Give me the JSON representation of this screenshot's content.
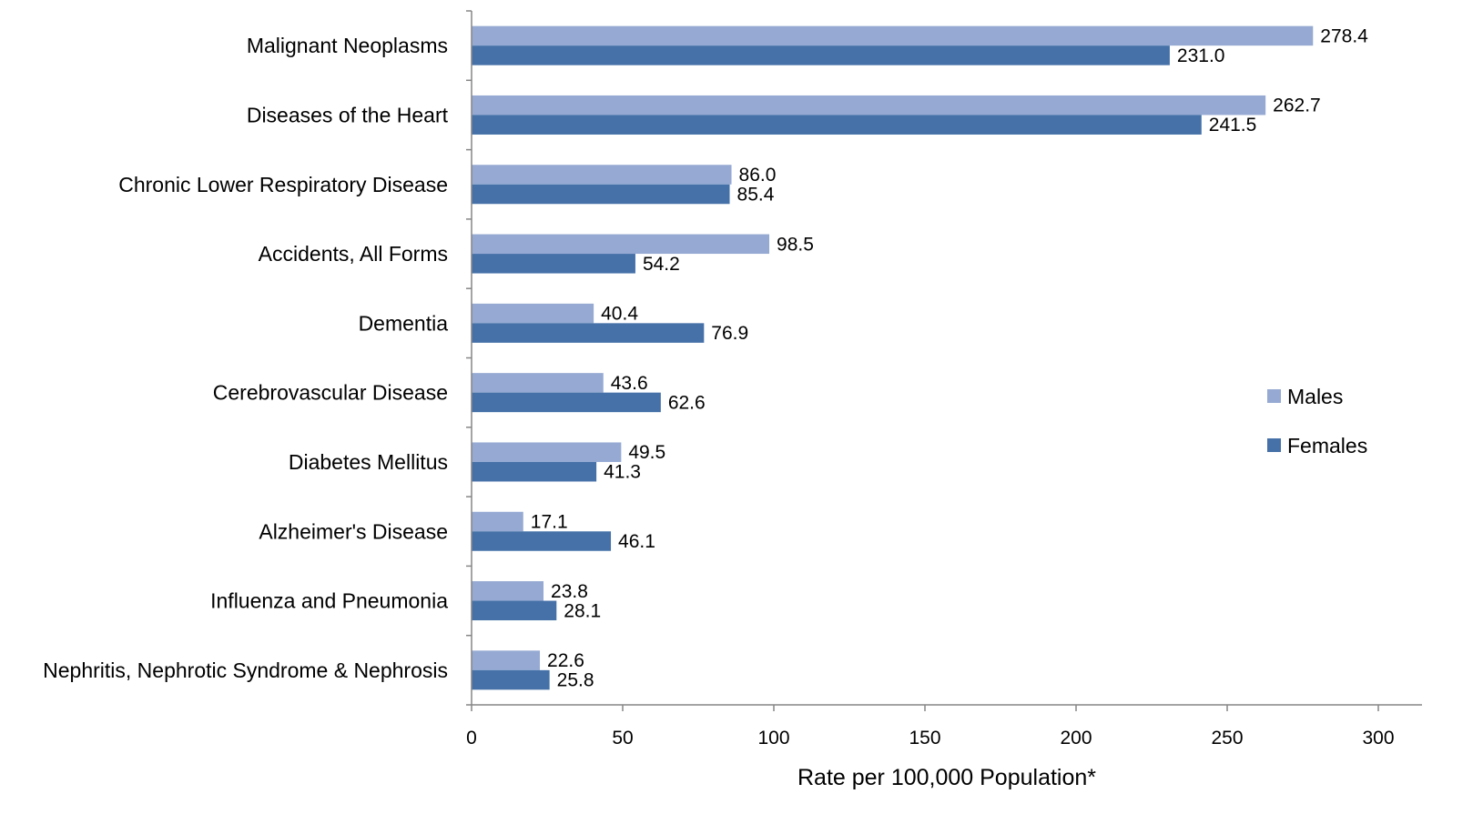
{
  "chart_data": {
    "type": "bar",
    "orientation": "horizontal",
    "categories": [
      "Malignant Neoplasms",
      "Diseases of the Heart",
      "Chronic Lower Respiratory Disease",
      "Accidents, All Forms",
      "Dementia",
      "Cerebrovascular Disease",
      "Diabetes Mellitus",
      "Alzheimer's Disease",
      "Influenza and Pneumonia",
      "Nephritis, Nephrotic Syndrome & Nephrosis"
    ],
    "series": [
      {
        "name": "Males",
        "color": "#95a9d2",
        "values": [
          278.4,
          262.7,
          86.0,
          98.5,
          40.4,
          43.6,
          49.5,
          17.1,
          23.8,
          22.6
        ],
        "labels": [
          "278.4",
          "262.7",
          "86.0",
          "98.5",
          "40.4",
          "43.6",
          "49.5",
          "17.1",
          "23.8",
          "22.6"
        ]
      },
      {
        "name": "Females",
        "color": "#4571a8",
        "values": [
          231.0,
          241.5,
          85.4,
          54.2,
          76.9,
          62.6,
          41.3,
          46.1,
          28.1,
          25.8
        ],
        "labels": [
          "231.0",
          "241.5",
          "85.4",
          "54.2",
          "76.9",
          "62.6",
          "41.3",
          "46.1",
          "28.1",
          "25.8"
        ]
      }
    ],
    "xlabel": "Rate per 100,000 Population*",
    "xlim": [
      0,
      300
    ],
    "xticks": [
      0,
      50,
      100,
      150,
      200,
      250,
      300
    ],
    "xtick_labels": [
      "0",
      "50",
      "100",
      "150",
      "200",
      "250",
      "300"
    ],
    "grid": false,
    "legend": "right"
  }
}
